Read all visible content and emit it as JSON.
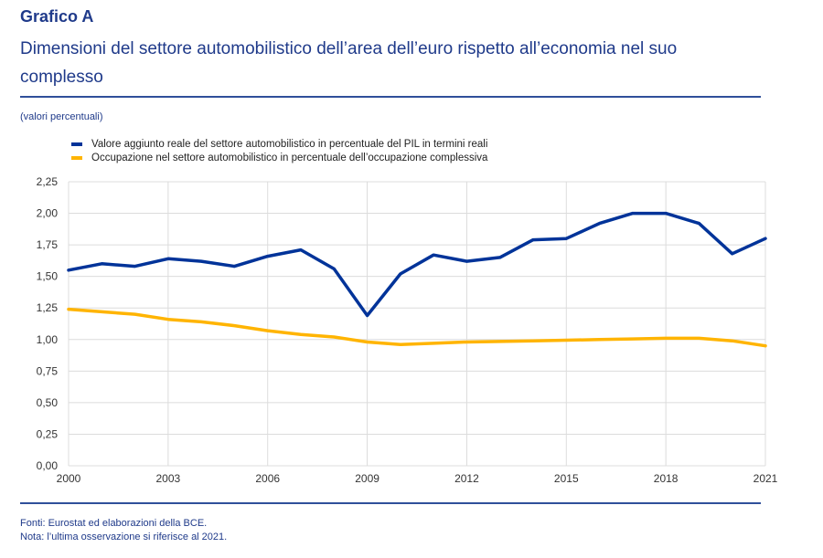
{
  "header": {
    "label": "Grafico A",
    "title": "Dimensioni del settore automobilistico dell’area dell’euro rispetto all’economia nel suo complesso",
    "units": "(valori percentuali)"
  },
  "footer": {
    "sources": "Fonti: Eurostat ed elaborazioni della BCE.",
    "note": "Nota: l’ultima osservazione si riferisce al 2021."
  },
  "chart_data": {
    "type": "line",
    "title": "Dimensioni del settore automobilistico dell’area dell’euro rispetto all’economia nel suo complesso",
    "ylabel": "(valori percentuali)",
    "xlabel": "",
    "x": [
      2000,
      2001,
      2002,
      2003,
      2004,
      2005,
      2006,
      2007,
      2008,
      2009,
      2010,
      2011,
      2012,
      2013,
      2014,
      2015,
      2016,
      2017,
      2018,
      2019,
      2020,
      2021
    ],
    "xlim": [
      2000,
      2021
    ],
    "ylim": [
      0,
      2.25
    ],
    "xticks": [
      "2000",
      "2003",
      "2006",
      "2009",
      "2012",
      "2015",
      "2018",
      "2021"
    ],
    "xtick_values": [
      2000,
      2003,
      2006,
      2009,
      2012,
      2015,
      2018,
      2021
    ],
    "yticks": [
      "0,00",
      "0,25",
      "0,50",
      "0,75",
      "1,00",
      "1,25",
      "1,50",
      "1,75",
      "2,00",
      "2,25"
    ],
    "ytick_values": [
      0,
      0.25,
      0.5,
      0.75,
      1.0,
      1.25,
      1.5,
      1.75,
      2.0,
      2.25
    ],
    "grid": true,
    "legend_position": "top-left",
    "series": [
      {
        "name": "Valore aggiunto reale del settore automobilistico in percentuale del PIL in termini reali",
        "color": "#003399",
        "values": [
          1.55,
          1.6,
          1.58,
          1.64,
          1.62,
          1.58,
          1.66,
          1.71,
          1.56,
          1.19,
          1.52,
          1.67,
          1.62,
          1.65,
          1.79,
          1.8,
          1.92,
          2.0,
          2.0,
          1.92,
          1.68,
          1.8
        ]
      },
      {
        "name": "Occupazione nel settore automobilistico in percentuale dell’occupazione complessiva",
        "color": "#FFB400",
        "values": [
          1.24,
          1.22,
          1.2,
          1.16,
          1.14,
          1.11,
          1.07,
          1.04,
          1.02,
          0.98,
          0.96,
          0.97,
          0.98,
          0.985,
          0.99,
          0.995,
          1.0,
          1.005,
          1.01,
          1.01,
          0.99,
          0.95
        ]
      }
    ]
  }
}
